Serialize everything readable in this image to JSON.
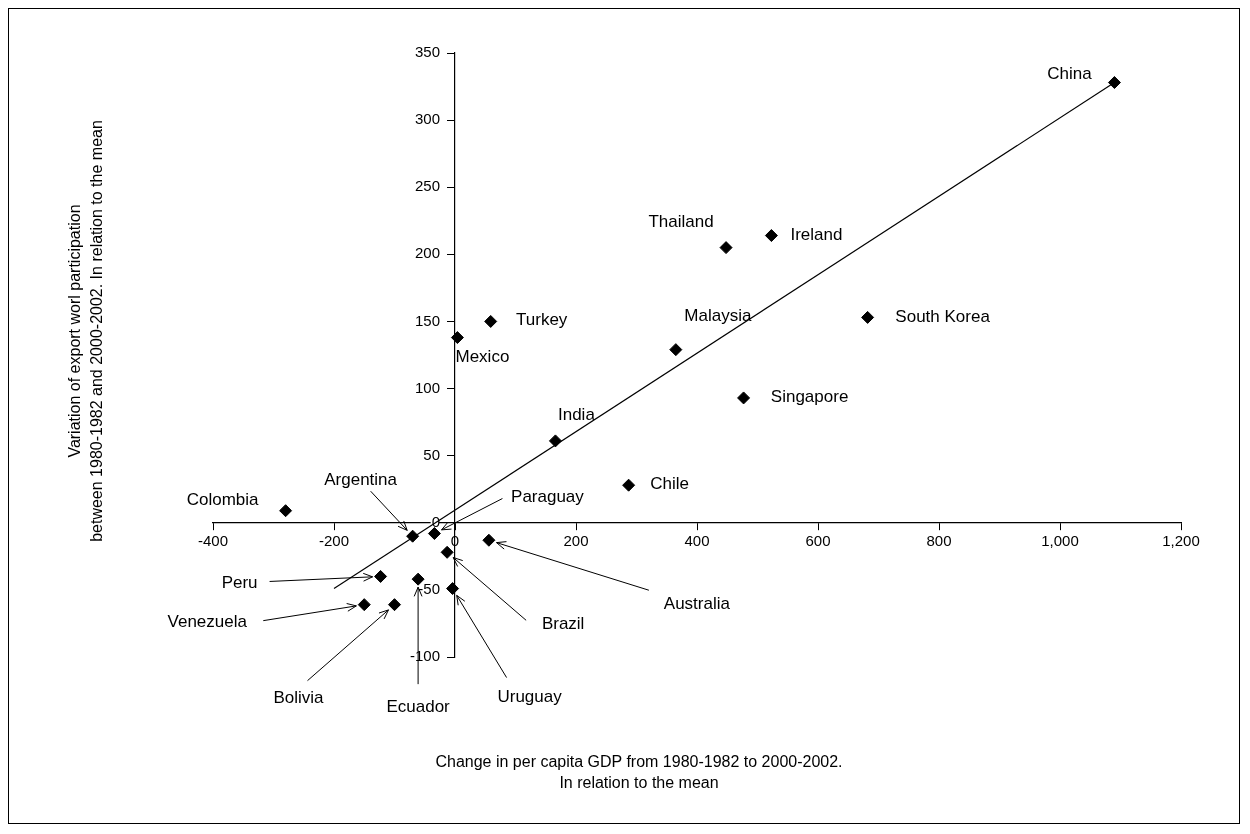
{
  "chart_data": {
    "type": "scatter",
    "xlim": [
      -400,
      1200
    ],
    "ylim": [
      -100,
      350
    ],
    "xticks": [
      -400,
      -200,
      0,
      200,
      400,
      600,
      800,
      {
        "value": 1000,
        "label": "1,000"
      },
      {
        "value": 1200,
        "label": "1,200"
      }
    ],
    "yticks": [
      -100,
      -50,
      0,
      50,
      100,
      150,
      200,
      250,
      300,
      350
    ],
    "grid": false,
    "legend": false,
    "series": [
      {
        "type": "scatter",
        "color": "#000000",
        "marker": "diamond",
        "x": [
          -280,
          -70,
          -34,
          -13,
          -4,
          56,
          -61,
          -123,
          -150,
          -100,
          166,
          4,
          59,
          365,
          448,
          523,
          682,
          477,
          287,
          1090
        ],
        "values": [
          9,
          -10,
          -8,
          -22,
          -49,
          -13,
          -42,
          -40,
          -61,
          -61,
          61,
          138,
          150,
          129,
          205,
          214,
          153,
          93,
          28,
          328
        ]
      },
      {
        "type": "line",
        "color": "#000000",
        "marker": "none",
        "line_style": "solid",
        "x": [
          -200,
          1090
        ],
        "values": [
          -49,
          328
        ]
      }
    ],
    "annotations": [
      {
        "text": "Colombia",
        "x": -280,
        "y": 9
      },
      {
        "text": "Argentina",
        "x": -70,
        "y": -10
      },
      {
        "text": "Paraguay",
        "x": -34,
        "y": -8
      },
      {
        "text": "Brazil",
        "x": -13,
        "y": -22
      },
      {
        "text": "Uruguay",
        "x": -4,
        "y": -49
      },
      {
        "text": "Australia",
        "x": 56,
        "y": -13
      },
      {
        "text": "Ecuador",
        "x": -61,
        "y": -42
      },
      {
        "text": "Peru",
        "x": -123,
        "y": -40
      },
      {
        "text": "Venezuela",
        "x": -150,
        "y": -61
      },
      {
        "text": "Bolivia",
        "x": -100,
        "y": -61
      },
      {
        "text": "India",
        "x": 166,
        "y": 61
      },
      {
        "text": "Mexico",
        "x": 4,
        "y": 138
      },
      {
        "text": "Turkey",
        "x": 59,
        "y": 150
      },
      {
        "text": "Malaysia",
        "x": 365,
        "y": 129
      },
      {
        "text": "Thailand",
        "x": 448,
        "y": 205
      },
      {
        "text": "Ireland",
        "x": 523,
        "y": 214
      },
      {
        "text": "South Korea",
        "x": 682,
        "y": 153
      },
      {
        "text": "Singapore",
        "x": 477,
        "y": 93
      },
      {
        "text": "Chile",
        "x": 287,
        "y": 28
      },
      {
        "text": "China",
        "x": 1090,
        "y": 328
      },
      "Change in per capita GDP from 1980-1982 to 2000-2002.\nIn relation to the mean",
      "Variation of export worl participation\nbetween 1980-1982 and 2000-2002. In relation to the mean"
    ]
  }
}
